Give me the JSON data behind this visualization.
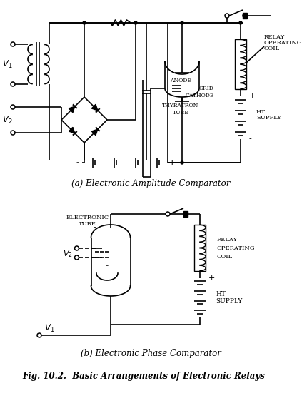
{
  "fig_width": 4.23,
  "fig_height": 5.72,
  "dpi": 100,
  "title": "Fig. 10.2.  Basic Arrangements of Electronic Relays",
  "caption_a": "(a) Electronic Amplitude Comparator",
  "caption_b": "(b) Electronic Phase Comparator"
}
